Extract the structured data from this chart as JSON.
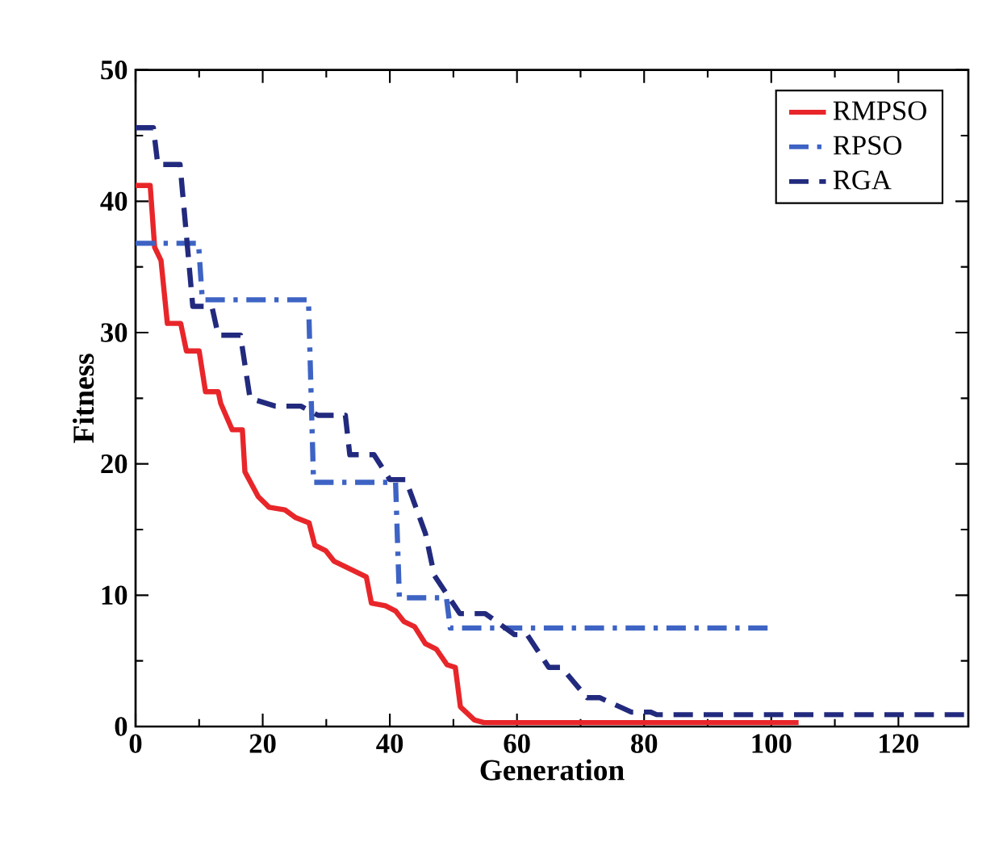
{
  "chart_data": {
    "type": "line",
    "xlabel": "Generation",
    "ylabel": "Fitness",
    "xlim": [
      0,
      131
    ],
    "ylim": [
      0,
      50
    ],
    "xticks": [
      0,
      20,
      40,
      60,
      80,
      100,
      120
    ],
    "yticks": [
      0,
      10,
      20,
      30,
      40,
      50
    ],
    "grid": false,
    "legend": "top right",
    "marker": "none",
    "series": [
      {
        "name": "RMPSO",
        "color": "#e8262a",
        "line_style": "solid",
        "x": [
          0,
          2.3,
          3,
          4,
          5,
          7.1,
          8,
          10,
          11,
          13,
          13.4,
          15.2,
          16.8,
          17.2,
          19.3,
          21,
          23.5,
          25.2,
          27.3,
          28.2,
          29.9,
          31.2,
          32.9,
          34.6,
          36.3,
          37.1,
          39.3,
          40.9,
          42.2,
          43.9,
          45.6,
          47.3,
          49,
          50.3,
          51.1,
          53.3,
          54.8,
          104.3
        ],
        "values": [
          41.2,
          41.2,
          36.5,
          35.5,
          30.7,
          30.7,
          28.6,
          28.6,
          25.5,
          25.5,
          24.6,
          22.6,
          22.6,
          19.4,
          17.5,
          16.7,
          16.5,
          15.9,
          15.5,
          13.8,
          13.4,
          12.6,
          12.2,
          11.8,
          11.4,
          9.4,
          9.2,
          8.8,
          8,
          7.6,
          6.3,
          5.9,
          4.7,
          4.5,
          1.5,
          0.5,
          0.3,
          0.3
        ]
      },
      {
        "name": "RPSO",
        "color": "#3d63c4",
        "line_style": "dashdot",
        "x": [
          0,
          9.9,
          10.5,
          27.2,
          28,
          40.9,
          41.5,
          48.9,
          49.5,
          99.7
        ],
        "values": [
          36.8,
          36.8,
          32.5,
          32.5,
          18.6,
          18.6,
          9.8,
          9.8,
          7.5,
          7.5
        ]
      },
      {
        "name": "RGA",
        "color": "#222a7e",
        "line_style": "dashed",
        "x": [
          0,
          2.8,
          3.5,
          7,
          9,
          12,
          13,
          16.5,
          18,
          22,
          26,
          28.7,
          33,
          33.7,
          37.5,
          40,
          42.5,
          45.6,
          47,
          51,
          55,
          59.6,
          61.6,
          65,
          67,
          71,
          73,
          78,
          81,
          82,
          131
        ],
        "values": [
          45.6,
          45.6,
          42.8,
          42.8,
          32,
          32,
          29.8,
          29.8,
          25,
          24.4,
          24.4,
          23.7,
          23.7,
          20.7,
          20.7,
          18.8,
          18.8,
          14.7,
          11.5,
          8.6,
          8.6,
          7,
          7,
          4.5,
          4.5,
          2.2,
          2.2,
          1.1,
          1.1,
          0.9,
          0.9
        ]
      }
    ]
  }
}
